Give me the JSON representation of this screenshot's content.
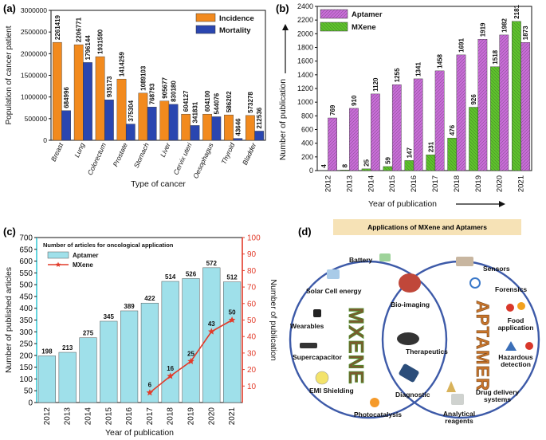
{
  "panels": {
    "a": "(a)",
    "b": "(b)",
    "c": "(c)",
    "d": "(d)"
  },
  "chart_data": [
    {
      "id": "a",
      "type": "bar",
      "title": "",
      "xlabel": "Type of cancer",
      "ylabel": "Population of cancer patient",
      "ylim": [
        0,
        3000000
      ],
      "yticks": [
        0,
        500000,
        1000000,
        1500000,
        2000000,
        2500000,
        3000000
      ],
      "categories": [
        "Breast",
        "Lung",
        "Colorectum",
        "Prostate",
        "Stomach",
        "Liver",
        "Cervix uteri",
        "Oesophagus",
        "Thyroid",
        "Bladder"
      ],
      "series": [
        {
          "name": "Incidence",
          "color": "#f28a1e",
          "values": [
            2261419,
            2206771,
            1931590,
            1414259,
            1089103,
            905677,
            604127,
            604100,
            586202,
            573278
          ]
        },
        {
          "name": "Mortality",
          "color": "#2a46b0",
          "values": [
            684996,
            1796144,
            935173,
            375304,
            768793,
            830180,
            341831,
            544076,
            43646,
            212536
          ]
        }
      ],
      "legend": "top-right"
    },
    {
      "id": "b",
      "type": "bar",
      "xlabel": "Year of publication",
      "ylabel": "Number of publication",
      "ylim": [
        0,
        2400
      ],
      "yticks": [
        0,
        200,
        400,
        600,
        800,
        1000,
        1200,
        1400,
        1600,
        1800,
        2000,
        2200,
        2400
      ],
      "categories": [
        "2012",
        "2013",
        "2014",
        "2015",
        "2016",
        "2017",
        "2018",
        "2019",
        "2020",
        "2021"
      ],
      "series": [
        {
          "name": "Aptamer",
          "color": "#c76cd6",
          "values": [
            769,
            910,
            1120,
            1255,
            1341,
            1458,
            1691,
            1919,
            1982,
            1873
          ]
        },
        {
          "name": "MXene",
          "color": "#5ec22c",
          "values": [
            4,
            8,
            25,
            59,
            147,
            231,
            476,
            926,
            1518,
            2181
          ]
        }
      ],
      "legend": "top-left"
    },
    {
      "id": "c",
      "type": "bar",
      "legend_title": "Number of articles for oncological application",
      "xlabel": "Year of publication",
      "ylabel": "Number of published articles",
      "ylabel_right": "Number of publication",
      "ylim": [
        0,
        700
      ],
      "yticks": [
        0,
        50,
        100,
        150,
        200,
        250,
        300,
        350,
        400,
        450,
        500,
        550,
        600,
        650,
        700
      ],
      "ylim_right": [
        0,
        100
      ],
      "yticks_right": [
        10,
        20,
        30,
        40,
        50,
        60,
        70,
        80,
        90,
        100
      ],
      "categories": [
        "2012",
        "2013",
        "2014",
        "2015",
        "2016",
        "2017",
        "2018",
        "2019",
        "2020",
        "2021"
      ],
      "series": [
        {
          "name": "Aptamer",
          "color": "#9fe0ea",
          "values": [
            198,
            213,
            275,
            345,
            389,
            422,
            514,
            526,
            572,
            512
          ]
        },
        {
          "name": "MXene",
          "color": "#e23b2a",
          "x": [
            "2017",
            "2018",
            "2019",
            "2020",
            "2021"
          ],
          "values": [
            6,
            16,
            25,
            43,
            50
          ]
        }
      ],
      "legend": "top-left"
    }
  ],
  "panel_d": {
    "title": "Applications of MXene and Aptamers",
    "mxene_word": "MXENE",
    "aptamer_word": "APTAMER",
    "mxene_items": [
      "Battery",
      "Solar Cell energy",
      "Wearables",
      "Supercapacitor",
      "EMI Shielding",
      "Photocatalysis"
    ],
    "center_items": [
      "Bio-imaging",
      "Therapeutics",
      "Diagnostic"
    ],
    "aptamer_items": [
      "Sensors",
      "Forensics",
      "Food application",
      "Hazardous detection",
      "Drug delivery systems",
      "Analytical reagents"
    ],
    "colors": {
      "circle": "#3d5aa8",
      "title_bg": "#f6e2b6"
    }
  }
}
